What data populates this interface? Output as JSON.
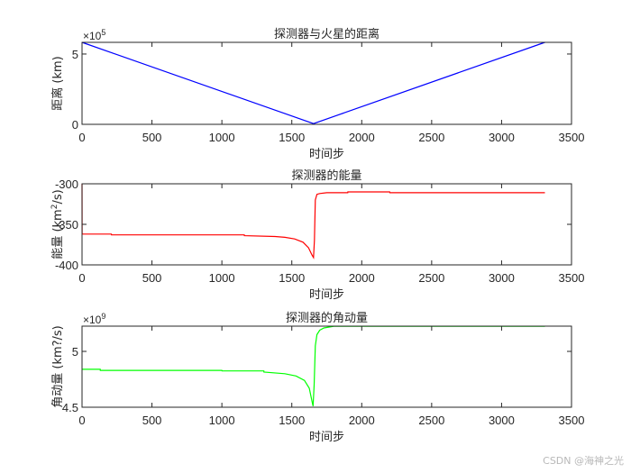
{
  "chart_data": [
    {
      "type": "line",
      "title": "探测器与火星的距离",
      "xlabel": "时间步",
      "ylabel": "距离 (km)",
      "y_exponent_label": "×10^5",
      "xlim": [
        0,
        3500
      ],
      "ylim": [
        0,
        5.83
      ],
      "xticks": [
        0,
        500,
        1000,
        1500,
        2000,
        2500,
        3000,
        3500
      ],
      "yticks": [
        0,
        5
      ],
      "ytick_labels": [
        "0",
        "5"
      ],
      "color": "#0000ff",
      "grid": false,
      "series": [
        {
          "name": "distance",
          "x": [
            0,
            1655,
            3310
          ],
          "values": [
            5.83,
            0.05,
            5.83
          ]
        }
      ]
    },
    {
      "type": "line",
      "title": "探测器的能量",
      "xlabel": "时间步",
      "ylabel": "能量 (km²/s)",
      "ylabel_parts": [
        "能量 (km",
        "2",
        "/s)"
      ],
      "xlim": [
        0,
        3500
      ],
      "ylim": [
        -400,
        -300
      ],
      "xticks": [
        0,
        500,
        1000,
        1500,
        2000,
        2500,
        3000,
        3500
      ],
      "yticks": [
        -400,
        -350,
        -300
      ],
      "ytick_labels": [
        "-400",
        "-350",
        "-300"
      ],
      "color": "#ff0000",
      "grid": false,
      "series": [
        {
          "name": "energy",
          "x": [
            0,
            0.5,
            210,
            211,
            1160,
            1161,
            1380,
            1450,
            1520,
            1580,
            1620,
            1645,
            1655,
            1662,
            1668,
            1680,
            1700,
            1750,
            1900,
            1901,
            2200,
            2201,
            3310
          ],
          "values": [
            -300,
            -362,
            -362,
            -363,
            -363,
            -364,
            -365,
            -366,
            -368,
            -372,
            -379,
            -388,
            -391,
            -370,
            -320,
            -313,
            -312,
            -311,
            -311,
            -310,
            -310,
            -311,
            -311
          ]
        }
      ]
    },
    {
      "type": "line",
      "title": "探测器的角动量",
      "xlabel": "时间步",
      "ylabel": "角动量 (km?/s)",
      "y_exponent_label": "×10^9",
      "xlim": [
        0,
        3500
      ],
      "ylim": [
        4.5,
        5.226
      ],
      "xticks": [
        0,
        500,
        1000,
        1500,
        2000,
        2500,
        3000,
        3500
      ],
      "yticks": [
        4.5,
        5
      ],
      "ytick_labels": [
        "4.5",
        "5"
      ],
      "color": "#00ff00",
      "grid": false,
      "series": [
        {
          "name": "angular_momentum",
          "x": [
            0,
            130,
            131,
            1000,
            1001,
            1300,
            1301,
            1450,
            1530,
            1590,
            1625,
            1645,
            1652,
            1660,
            1668,
            1680,
            1700,
            1730,
            1800,
            3310
          ],
          "values": [
            4.84,
            4.84,
            4.83,
            4.83,
            4.825,
            4.825,
            4.815,
            4.8,
            4.78,
            4.74,
            4.67,
            4.55,
            4.51,
            4.7,
            5.05,
            5.15,
            5.19,
            5.21,
            5.225,
            5.225
          ]
        }
      ]
    }
  ],
  "watermark": "CSDN @海神之光"
}
